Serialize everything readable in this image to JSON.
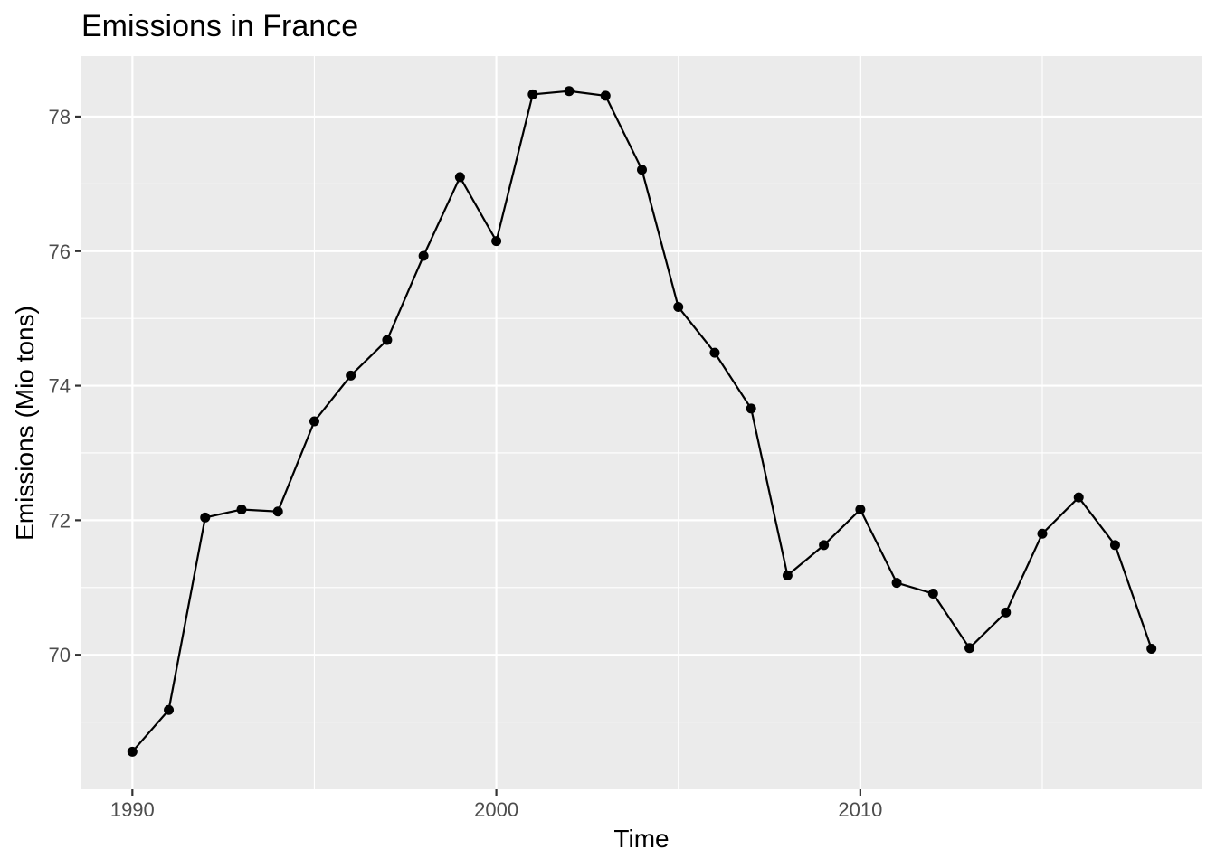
{
  "chart_data": {
    "type": "line",
    "title": "Emissions in France",
    "xlabel": "Time",
    "ylabel": "Emissions (Mio tons)",
    "x": [
      1990,
      1991,
      1992,
      1993,
      1994,
      1995,
      1996,
      1997,
      1998,
      1999,
      2000,
      2001,
      2002,
      2003,
      2004,
      2005,
      2006,
      2007,
      2008,
      2009,
      2010,
      2011,
      2012,
      2013,
      2014,
      2015,
      2016,
      2017,
      2018
    ],
    "y": [
      68.56,
      69.18,
      72.04,
      72.16,
      72.13,
      73.47,
      74.15,
      74.68,
      75.93,
      77.1,
      76.15,
      78.33,
      78.38,
      78.31,
      77.21,
      75.17,
      74.49,
      73.66,
      71.18,
      71.63,
      72.16,
      71.07,
      70.91,
      70.1,
      70.63,
      71.8,
      72.34,
      71.63,
      70.09
    ],
    "xlim": [
      1988.6,
      2019.4
    ],
    "ylim": [
      68.0,
      78.9
    ],
    "x_ticks": [
      1990,
      2000,
      2010
    ],
    "x_tick_labels": [
      "1990",
      "2000",
      "2010"
    ],
    "x_minor_ticks": [
      1995,
      2005,
      2015
    ],
    "y_ticks": [
      70,
      72,
      74,
      76,
      78
    ],
    "y_tick_labels": [
      "70",
      "72",
      "74",
      "76",
      "78"
    ],
    "y_minor_ticks": [
      69,
      71,
      73,
      75,
      77
    ],
    "grid": true,
    "legend": "none",
    "colors": {
      "panel": "#ebebeb",
      "grid": "#ffffff",
      "line": "#000000",
      "point": "#000000"
    }
  }
}
